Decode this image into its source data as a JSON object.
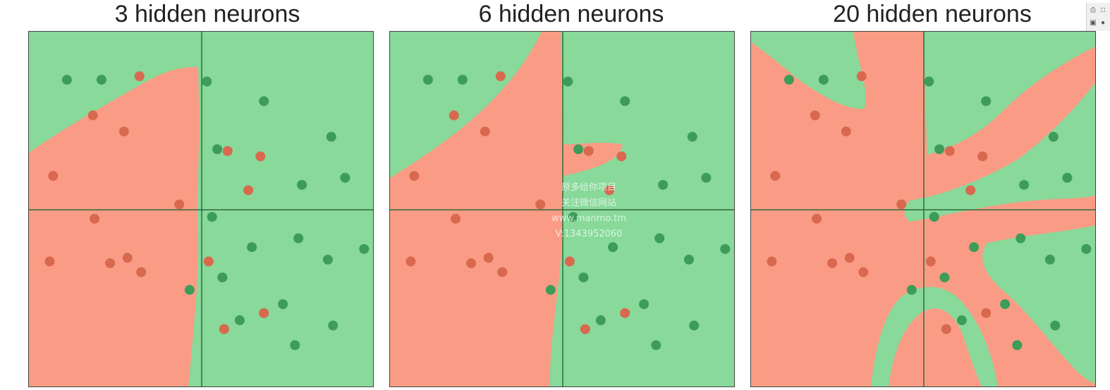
{
  "colors": {
    "red_region": "#fa9c85",
    "green_region": "#88d99a",
    "red_point": "#d8694e",
    "green_point": "#3d9c58",
    "axis_line": "#2e6b3c"
  },
  "watermark": [
    "原多给你项目",
    "关注微信网站",
    "www.manmo.tm",
    "V:1343952060"
  ],
  "chart_data": [
    {
      "type": "scatter",
      "title": "3 hidden neurons",
      "xlabel": "",
      "ylabel": "",
      "xlim": [
        -1,
        1
      ],
      "ylim": [
        -1,
        1
      ],
      "grid": false,
      "series": [
        {
          "class": "red",
          "points": [
            [
              -0.63,
              0.53
            ],
            [
              -0.86,
              0.19
            ],
            [
              -0.36,
              0.75
            ],
            [
              -0.62,
              -0.05
            ],
            [
              -0.43,
              -0.27
            ],
            [
              -0.53,
              -0.3
            ],
            [
              -0.45,
              0.44
            ],
            [
              -0.13,
              0.03
            ],
            [
              -0.88,
              -0.29
            ],
            [
              -0.35,
              -0.35
            ],
            [
              0.15,
              0.33
            ],
            [
              0.04,
              -0.29
            ],
            [
              0.27,
              0.11
            ],
            [
              0.34,
              0.3
            ],
            [
              0.36,
              -0.58
            ],
            [
              0.13,
              -0.67
            ]
          ]
        },
        {
          "class": "green",
          "points": [
            [
              -0.78,
              0.73
            ],
            [
              -0.58,
              0.73
            ],
            [
              0.03,
              0.72
            ],
            [
              0.36,
              0.61
            ],
            [
              0.75,
              0.41
            ],
            [
              0.09,
              0.34
            ],
            [
              0.58,
              0.14
            ],
            [
              0.83,
              0.18
            ],
            [
              0.56,
              -0.16
            ],
            [
              0.06,
              -0.04
            ],
            [
              0.29,
              -0.21
            ],
            [
              0.94,
              -0.22
            ],
            [
              0.73,
              -0.28
            ],
            [
              0.12,
              -0.38
            ],
            [
              0.47,
              -0.53
            ],
            [
              -0.07,
              -0.45
            ],
            [
              0.22,
              -0.62
            ],
            [
              0.76,
              -0.65
            ],
            [
              0.54,
              -0.76
            ]
          ]
        }
      ]
    },
    {
      "type": "scatter",
      "title": "6 hidden neurons",
      "xlabel": "",
      "ylabel": "",
      "xlim": [
        -1,
        1
      ],
      "ylim": [
        -1,
        1
      ],
      "grid": false,
      "series": [
        {
          "class": "red",
          "points": [
            [
              -0.63,
              0.53
            ],
            [
              -0.86,
              0.19
            ],
            [
              -0.36,
              0.75
            ],
            [
              -0.62,
              -0.05
            ],
            [
              -0.43,
              -0.27
            ],
            [
              -0.53,
              -0.3
            ],
            [
              -0.45,
              0.44
            ],
            [
              -0.13,
              0.03
            ],
            [
              -0.88,
              -0.29
            ],
            [
              -0.35,
              -0.35
            ],
            [
              0.15,
              0.33
            ],
            [
              0.04,
              -0.29
            ],
            [
              0.27,
              0.11
            ],
            [
              0.34,
              0.3
            ],
            [
              0.36,
              -0.58
            ],
            [
              0.13,
              -0.67
            ]
          ]
        },
        {
          "class": "green",
          "points": [
            [
              -0.78,
              0.73
            ],
            [
              -0.58,
              0.73
            ],
            [
              0.03,
              0.72
            ],
            [
              0.36,
              0.61
            ],
            [
              0.75,
              0.41
            ],
            [
              0.09,
              0.34
            ],
            [
              0.58,
              0.14
            ],
            [
              0.83,
              0.18
            ],
            [
              0.56,
              -0.16
            ],
            [
              0.06,
              -0.04
            ],
            [
              0.29,
              -0.21
            ],
            [
              0.94,
              -0.22
            ],
            [
              0.73,
              -0.28
            ],
            [
              0.12,
              -0.38
            ],
            [
              0.47,
              -0.53
            ],
            [
              -0.07,
              -0.45
            ],
            [
              0.22,
              -0.62
            ],
            [
              0.76,
              -0.65
            ],
            [
              0.54,
              -0.76
            ]
          ]
        }
      ]
    },
    {
      "type": "scatter",
      "title": "20 hidden neurons",
      "xlabel": "",
      "ylabel": "",
      "xlim": [
        -1,
        1
      ],
      "ylim": [
        -1,
        1
      ],
      "grid": false,
      "series": [
        {
          "class": "red",
          "points": [
            [
              -0.63,
              0.53
            ],
            [
              -0.86,
              0.19
            ],
            [
              -0.36,
              0.75
            ],
            [
              -0.62,
              -0.05
            ],
            [
              -0.43,
              -0.27
            ],
            [
              -0.53,
              -0.3
            ],
            [
              -0.45,
              0.44
            ],
            [
              -0.13,
              0.03
            ],
            [
              -0.88,
              -0.29
            ],
            [
              -0.35,
              -0.35
            ],
            [
              0.15,
              0.33
            ],
            [
              0.04,
              -0.29
            ],
            [
              0.27,
              0.11
            ],
            [
              0.34,
              0.3
            ],
            [
              0.36,
              -0.58
            ],
            [
              0.13,
              -0.67
            ]
          ]
        },
        {
          "class": "green",
          "points": [
            [
              -0.78,
              0.73
            ],
            [
              -0.58,
              0.73
            ],
            [
              0.03,
              0.72
            ],
            [
              0.36,
              0.61
            ],
            [
              0.75,
              0.41
            ],
            [
              0.09,
              0.34
            ],
            [
              0.58,
              0.14
            ],
            [
              0.83,
              0.18
            ],
            [
              0.56,
              -0.16
            ],
            [
              0.06,
              -0.04
            ],
            [
              0.29,
              -0.21
            ],
            [
              0.94,
              -0.22
            ],
            [
              0.73,
              -0.28
            ],
            [
              0.12,
              -0.38
            ],
            [
              0.47,
              -0.53
            ],
            [
              -0.07,
              -0.45
            ],
            [
              0.22,
              -0.62
            ],
            [
              0.76,
              -0.65
            ],
            [
              0.54,
              -0.76
            ]
          ]
        }
      ]
    }
  ]
}
